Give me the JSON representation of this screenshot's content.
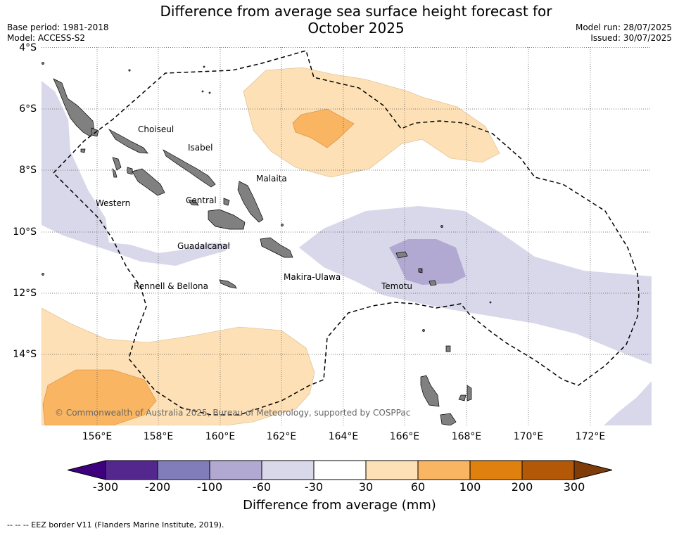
{
  "title": "Difference from average sea surface height forecast for October 2025",
  "meta_left": [
    "Base period: 1981-2018",
    "Model: ACCESS-S2"
  ],
  "meta_right": [
    "Model run: 28/07/2025",
    "Issued: 30/07/2025"
  ],
  "lat_labels": [
    "4°S",
    "6°S",
    "8°S",
    "10°S",
    "12°S",
    "14°S"
  ],
  "lon_labels": [
    "156°E",
    "158°E",
    "160°E",
    "162°E",
    "164°E",
    "166°E",
    "168°E",
    "170°E",
    "172°E"
  ],
  "regions": {
    "choiseul": "Choiseul",
    "isabel": "Isabel",
    "malaita": "Malaita",
    "western": "Western",
    "central": "Central",
    "guadalcanal": "Guadalcanal",
    "makira": "Makira-Ulawa",
    "temotu": "Temotu",
    "rennell": "Rennell & Bellona"
  },
  "credit": "© Commonwealth of Australia 2025, Bureau of Meteorology, supported by COSPPac",
  "colorbar": {
    "ticks": [
      "-300",
      "-200",
      "-100",
      "-60",
      "-30",
      "30",
      "60",
      "100",
      "200",
      "300"
    ],
    "label": "Difference from average (mm)",
    "colors": [
      "#3f007d",
      "#54278f",
      "#807dba",
      "#b1a9d1",
      "#d8d8ea",
      "#ffffff",
      "#fde0b6",
      "#f9b561",
      "#e0810f",
      "#b35806",
      "#7f3b08"
    ]
  },
  "legend_note": "--  --  -- EEZ border V11 (Flanders Marine Institute, 2019).",
  "colors": {
    "land": "#808080",
    "neg_light": "#d8d8ea",
    "neg_mid": "#b1a9d1",
    "pos_light": "#fde0b6",
    "pos_mid": "#f9b561"
  }
}
